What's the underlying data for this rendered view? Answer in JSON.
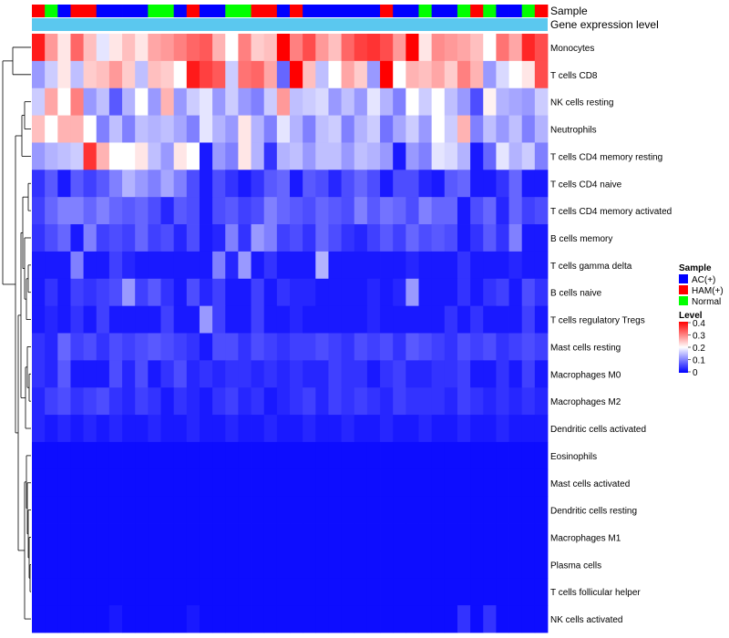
{
  "chart_data": {
    "type": "heatmap",
    "title": "",
    "annotations": {
      "sample_title": "Sample",
      "expression_title": "Gene expression level"
    },
    "legend": {
      "placement": "right",
      "sample": {
        "title": "Sample",
        "entries": [
          {
            "label": "AC(+)",
            "color": "#0000ff"
          },
          {
            "label": "HAM(+)",
            "color": "#ff0000"
          },
          {
            "label": "Normal",
            "color": "#00ff00"
          }
        ]
      },
      "level": {
        "title": "Level",
        "ticks": [
          "0.4",
          "0.3",
          "0.2",
          "0.1",
          "0"
        ],
        "range": [
          0,
          0.4
        ],
        "colors": [
          "#0000ff",
          "#ffffff",
          "#ff0000"
        ]
      }
    },
    "samples": [
      "H",
      "N",
      "A",
      "H",
      "H",
      "A",
      "A",
      "A",
      "A",
      "N",
      "N",
      "A",
      "H",
      "A",
      "A",
      "N",
      "N",
      "H",
      "H",
      "A",
      "H",
      "A",
      "A",
      "A",
      "A",
      "A",
      "A",
      "H",
      "A",
      "A",
      "N",
      "A",
      "A",
      "N",
      "H",
      "N",
      "A",
      "A",
      "N",
      "H"
    ],
    "rows": [
      "Monocytes",
      "T cells CD8",
      "NK cells resting",
      "Neutrophils",
      "T cells CD4 memory resting",
      "T cells CD4 naive",
      "T cells CD4 memory activated",
      "B cells memory",
      "T cells gamma delta",
      "B cells naive",
      "T cells regulatory  Tregs",
      "Mast cells resting",
      "Macrophages M0",
      "Macrophages M2",
      "Dendritic cells activated",
      "Eosinophils",
      "Mast cells activated",
      "Dendritic cells resting",
      "Macrophages M1",
      "Plasma cells",
      "T cells follicular helper",
      "NK cells activated"
    ],
    "values": [
      [
        0.38,
        0.28,
        0.22,
        0.32,
        0.25,
        0.18,
        0.22,
        0.25,
        0.22,
        0.27,
        0.28,
        0.3,
        0.32,
        0.33,
        0.26,
        0.2,
        0.3,
        0.24,
        0.25,
        0.4,
        0.3,
        0.34,
        0.28,
        0.25,
        0.32,
        0.35,
        0.36,
        0.34,
        0.28,
        0.4,
        0.22,
        0.29,
        0.28,
        0.27,
        0.25,
        0.2,
        0.31,
        0.27,
        0.37,
        0.34
      ],
      [
        0.12,
        0.16,
        0.22,
        0.15,
        0.24,
        0.25,
        0.28,
        0.24,
        0.15,
        0.25,
        0.24,
        0.2,
        0.38,
        0.35,
        0.33,
        0.16,
        0.31,
        0.32,
        0.27,
        0.08,
        0.4,
        0.25,
        0.15,
        0.2,
        0.27,
        0.24,
        0.12,
        0.4,
        0.2,
        0.26,
        0.25,
        0.27,
        0.24,
        0.3,
        0.26,
        0.12,
        0.17,
        0.2,
        0.22,
        0.34
      ],
      [
        0.16,
        0.27,
        0.2,
        0.3,
        0.12,
        0.15,
        0.07,
        0.14,
        0.2,
        0.12,
        0.26,
        0.12,
        0.16,
        0.18,
        0.12,
        0.16,
        0.12,
        0.1,
        0.16,
        0.28,
        0.15,
        0.16,
        0.17,
        0.12,
        0.15,
        0.12,
        0.18,
        0.14,
        0.1,
        0.2,
        0.16,
        0.2,
        0.15,
        0.12,
        0.06,
        0.21,
        0.14,
        0.13,
        0.12,
        0.16
      ],
      [
        0.25,
        0.2,
        0.26,
        0.26,
        0.2,
        0.1,
        0.15,
        0.1,
        0.15,
        0.14,
        0.15,
        0.13,
        0.1,
        0.18,
        0.14,
        0.12,
        0.22,
        0.14,
        0.1,
        0.18,
        0.14,
        0.1,
        0.15,
        0.16,
        0.1,
        0.14,
        0.16,
        0.09,
        0.13,
        0.16,
        0.12,
        0.2,
        0.16,
        0.26,
        0.1,
        0.15,
        0.12,
        0.15,
        0.1,
        0.14
      ],
      [
        0.12,
        0.14,
        0.15,
        0.16,
        0.36,
        0.26,
        0.2,
        0.2,
        0.22,
        0.15,
        0.12,
        0.22,
        0.2,
        0.02,
        0.12,
        0.1,
        0.22,
        0.14,
        0.04,
        0.14,
        0.15,
        0.12,
        0.15,
        0.15,
        0.12,
        0.15,
        0.14,
        0.12,
        0.02,
        0.12,
        0.1,
        0.18,
        0.17,
        0.14,
        0.02,
        0.08,
        0.18,
        0.14,
        0.16,
        0.1
      ],
      [
        0.04,
        0.07,
        0.02,
        0.07,
        0.05,
        0.07,
        0.1,
        0.14,
        0.12,
        0.1,
        0.13,
        0.1,
        0.06,
        0.02,
        0.06,
        0.04,
        0.02,
        0.04,
        0.07,
        0.08,
        0.02,
        0.07,
        0.06,
        0.03,
        0.06,
        0.08,
        0.06,
        0.02,
        0.06,
        0.06,
        0.03,
        0.02,
        0.07,
        0.08,
        0.02,
        0.02,
        0.04,
        0.08,
        0.02,
        0.02
      ],
      [
        0.05,
        0.08,
        0.1,
        0.1,
        0.08,
        0.1,
        0.08,
        0.07,
        0.08,
        0.06,
        0.03,
        0.07,
        0.06,
        0.02,
        0.06,
        0.07,
        0.05,
        0.06,
        0.1,
        0.08,
        0.07,
        0.06,
        0.08,
        0.07,
        0.06,
        0.1,
        0.07,
        0.09,
        0.08,
        0.06,
        0.1,
        0.08,
        0.08,
        0.02,
        0.06,
        0.08,
        0.03,
        0.08,
        0.05,
        0.06
      ],
      [
        0.04,
        0.06,
        0.08,
        0.02,
        0.1,
        0.05,
        0.06,
        0.05,
        0.08,
        0.05,
        0.06,
        0.03,
        0.06,
        0.02,
        0.03,
        0.1,
        0.04,
        0.12,
        0.1,
        0.05,
        0.06,
        0.04,
        0.08,
        0.06,
        0.04,
        0.03,
        0.05,
        0.07,
        0.05,
        0.08,
        0.06,
        0.07,
        0.06,
        0.02,
        0.04,
        0.07,
        0.04,
        0.1,
        0.02,
        0.02
      ],
      [
        0.02,
        0.02,
        0.02,
        0.1,
        0.02,
        0.02,
        0.05,
        0.03,
        0.02,
        0.02,
        0.02,
        0.02,
        0.02,
        0.02,
        0.1,
        0.03,
        0.12,
        0.02,
        0.04,
        0.02,
        0.02,
        0.02,
        0.14,
        0.02,
        0.02,
        0.02,
        0.02,
        0.02,
        0.02,
        0.03,
        0.02,
        0.02,
        0.02,
        0.04,
        0.02,
        0.02,
        0.02,
        0.03,
        0.02,
        0.02
      ],
      [
        0.02,
        0.04,
        0.02,
        0.05,
        0.04,
        0.05,
        0.06,
        0.12,
        0.05,
        0.07,
        0.04,
        0.02,
        0.06,
        0.03,
        0.05,
        0.02,
        0.02,
        0.05,
        0.02,
        0.04,
        0.03,
        0.03,
        0.02,
        0.02,
        0.02,
        0.02,
        0.03,
        0.02,
        0.03,
        0.12,
        0.02,
        0.02,
        0.02,
        0.04,
        0.02,
        0.04,
        0.05,
        0.02,
        0.06,
        0.04
      ],
      [
        0.02,
        0.03,
        0.02,
        0.04,
        0.02,
        0.05,
        0.02,
        0.02,
        0.02,
        0.02,
        0.05,
        0.02,
        0.02,
        0.12,
        0.05,
        0.02,
        0.02,
        0.05,
        0.02,
        0.02,
        0.03,
        0.02,
        0.02,
        0.02,
        0.02,
        0.02,
        0.03,
        0.02,
        0.02,
        0.02,
        0.02,
        0.02,
        0.04,
        0.02,
        0.04,
        0.02,
        0.02,
        0.02,
        0.05,
        0.02
      ],
      [
        0.04,
        0.03,
        0.08,
        0.05,
        0.06,
        0.04,
        0.06,
        0.05,
        0.06,
        0.07,
        0.06,
        0.05,
        0.04,
        0.02,
        0.06,
        0.06,
        0.04,
        0.06,
        0.05,
        0.04,
        0.05,
        0.05,
        0.06,
        0.05,
        0.04,
        0.06,
        0.05,
        0.06,
        0.04,
        0.07,
        0.06,
        0.05,
        0.04,
        0.06,
        0.05,
        0.06,
        0.04,
        0.05,
        0.06,
        0.05
      ],
      [
        0.04,
        0.03,
        0.07,
        0.02,
        0.02,
        0.02,
        0.06,
        0.03,
        0.06,
        0.02,
        0.04,
        0.06,
        0.03,
        0.04,
        0.03,
        0.04,
        0.04,
        0.03,
        0.04,
        0.03,
        0.04,
        0.03,
        0.03,
        0.05,
        0.04,
        0.04,
        0.02,
        0.04,
        0.05,
        0.03,
        0.03,
        0.04,
        0.04,
        0.05,
        0.02,
        0.02,
        0.04,
        0.02,
        0.05,
        0.02
      ],
      [
        0.03,
        0.05,
        0.06,
        0.04,
        0.05,
        0.06,
        0.04,
        0.03,
        0.05,
        0.04,
        0.02,
        0.04,
        0.03,
        0.02,
        0.04,
        0.05,
        0.03,
        0.04,
        0.02,
        0.03,
        0.04,
        0.05,
        0.03,
        0.05,
        0.04,
        0.05,
        0.04,
        0.03,
        0.05,
        0.04,
        0.04,
        0.04,
        0.03,
        0.05,
        0.04,
        0.03,
        0.04,
        0.03,
        0.04,
        0.03
      ],
      [
        0.03,
        0.02,
        0.03,
        0.02,
        0.03,
        0.02,
        0.03,
        0.02,
        0.02,
        0.03,
        0.02,
        0.02,
        0.03,
        0.02,
        0.02,
        0.03,
        0.02,
        0.02,
        0.03,
        0.02,
        0.02,
        0.03,
        0.02,
        0.02,
        0.03,
        0.02,
        0.02,
        0.03,
        0.02,
        0.02,
        0.03,
        0.02,
        0.02,
        0.03,
        0.02,
        0.02,
        0.03,
        0.02,
        0.02,
        0.02
      ],
      [
        0.01,
        0.01,
        0.01,
        0.01,
        0.01,
        0.01,
        0.01,
        0.01,
        0.01,
        0.01,
        0.01,
        0.01,
        0.01,
        0.01,
        0.01,
        0.01,
        0.01,
        0.01,
        0.01,
        0.01,
        0.01,
        0.01,
        0.01,
        0.01,
        0.01,
        0.01,
        0.01,
        0.01,
        0.01,
        0.01,
        0.01,
        0.01,
        0.01,
        0.01,
        0.01,
        0.01,
        0.01,
        0.01,
        0.01,
        0.01
      ],
      [
        0.01,
        0.01,
        0.01,
        0.01,
        0.01,
        0.01,
        0.01,
        0.01,
        0.01,
        0.01,
        0.01,
        0.01,
        0.01,
        0.01,
        0.01,
        0.01,
        0.01,
        0.01,
        0.01,
        0.01,
        0.01,
        0.01,
        0.01,
        0.01,
        0.01,
        0.01,
        0.01,
        0.01,
        0.01,
        0.01,
        0.01,
        0.01,
        0.01,
        0.01,
        0.01,
        0.01,
        0.01,
        0.01,
        0.01,
        0.01
      ],
      [
        0.01,
        0.01,
        0.01,
        0.01,
        0.01,
        0.01,
        0.01,
        0.01,
        0.01,
        0.01,
        0.01,
        0.01,
        0.01,
        0.01,
        0.01,
        0.01,
        0.01,
        0.01,
        0.01,
        0.01,
        0.01,
        0.01,
        0.01,
        0.01,
        0.01,
        0.01,
        0.01,
        0.01,
        0.01,
        0.01,
        0.01,
        0.01,
        0.01,
        0.01,
        0.01,
        0.01,
        0.01,
        0.01,
        0.01,
        0.01
      ],
      [
        0.01,
        0.01,
        0.01,
        0.01,
        0.01,
        0.01,
        0.01,
        0.01,
        0.01,
        0.01,
        0.01,
        0.01,
        0.01,
        0.01,
        0.01,
        0.01,
        0.01,
        0.01,
        0.01,
        0.01,
        0.01,
        0.01,
        0.01,
        0.01,
        0.01,
        0.01,
        0.01,
        0.01,
        0.01,
        0.01,
        0.01,
        0.01,
        0.01,
        0.01,
        0.01,
        0.01,
        0.01,
        0.01,
        0.01,
        0.01
      ],
      [
        0.01,
        0.01,
        0.01,
        0.01,
        0.01,
        0.01,
        0.01,
        0.01,
        0.01,
        0.01,
        0.01,
        0.01,
        0.01,
        0.01,
        0.01,
        0.01,
        0.01,
        0.01,
        0.01,
        0.01,
        0.01,
        0.01,
        0.01,
        0.01,
        0.01,
        0.01,
        0.01,
        0.01,
        0.01,
        0.01,
        0.01,
        0.01,
        0.01,
        0.01,
        0.01,
        0.01,
        0.01,
        0.01,
        0.01,
        0.01
      ],
      [
        0.01,
        0.01,
        0.01,
        0.01,
        0.01,
        0.01,
        0.01,
        0.01,
        0.01,
        0.01,
        0.01,
        0.01,
        0.01,
        0.01,
        0.01,
        0.01,
        0.01,
        0.01,
        0.01,
        0.01,
        0.01,
        0.01,
        0.01,
        0.01,
        0.01,
        0.01,
        0.01,
        0.01,
        0.01,
        0.01,
        0.01,
        0.01,
        0.01,
        0.01,
        0.01,
        0.01,
        0.01,
        0.01,
        0.01,
        0.01
      ],
      [
        0.01,
        0.01,
        0.01,
        0.01,
        0.01,
        0.01,
        0.02,
        0.01,
        0.01,
        0.01,
        0.01,
        0.01,
        0.02,
        0.01,
        0.01,
        0.01,
        0.01,
        0.01,
        0.01,
        0.01,
        0.01,
        0.01,
        0.01,
        0.01,
        0.01,
        0.01,
        0.01,
        0.01,
        0.01,
        0.01,
        0.01,
        0.01,
        0.01,
        0.04,
        0.01,
        0.04,
        0.01,
        0.01,
        0.01,
        0.01
      ]
    ]
  }
}
